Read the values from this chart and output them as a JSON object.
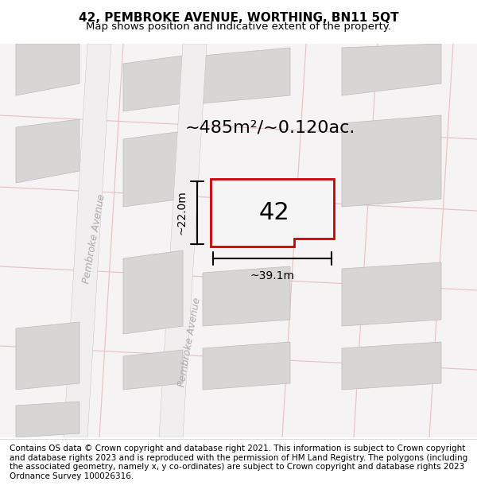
{
  "title": "42, PEMBROKE AVENUE, WORTHING, BN11 5QT",
  "subtitle": "Map shows position and indicative extent of the property.",
  "footer": "Contains OS data © Crown copyright and database right 2021. This information is subject to Crown copyright and database rights 2023 and is reproduced with the permission of HM Land Registry. The polygons (including the associated geometry, namely x, y co-ordinates) are subject to Crown copyright and database rights 2023 Ordnance Survey 100026316.",
  "area_label": "~485m²/~0.120ac.",
  "number_label": "42",
  "width_label": "~39.1m",
  "height_label": "~22.0m",
  "bg_color": "#f0eeee",
  "map_bg": "#f5f3f3",
  "block_color": "#d8d5d5",
  "block_edge_color": "#c0bcbc",
  "road_color": "#ffffff",
  "grid_color": "#e8c0c0",
  "plot_color": "#f0f0f0",
  "plot_edge_color": "#cc0000",
  "street_label_1": "Pembroke Avenue",
  "street_label_2": "Pembroke Avenue",
  "title_fontsize": 11,
  "subtitle_fontsize": 9.5,
  "footer_fontsize": 7.5
}
